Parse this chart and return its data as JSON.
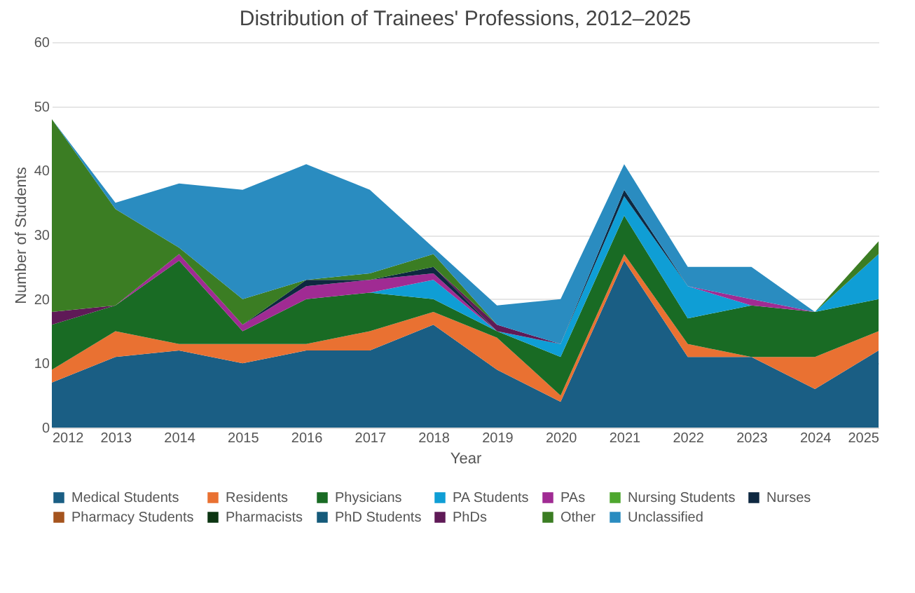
{
  "chart_data": {
    "type": "area",
    "stacked": true,
    "title": "Distribution of Trainees' Professions, 2012–2025",
    "xlabel": "Year",
    "ylabel": "Number of Students",
    "x": [
      2012,
      2013,
      2014,
      2015,
      2016,
      2017,
      2018,
      2019,
      2020,
      2021,
      2022,
      2023,
      2024,
      2025
    ],
    "xlim": [
      2012,
      2025
    ],
    "xticks": [
      2012,
      2013,
      2014,
      2015,
      2016,
      2017,
      2018,
      2019,
      2020,
      2021,
      2022,
      2023,
      2024,
      2025
    ],
    "ylim": [
      0,
      60
    ],
    "yticks": [
      0,
      10,
      20,
      30,
      40,
      50,
      60
    ],
    "grid": "y",
    "legend": "bottom",
    "series": [
      {
        "name": "Medical Students",
        "color": "#1a5e84",
        "values": [
          7,
          11,
          12,
          10,
          12,
          12,
          16,
          9,
          4,
          26,
          11,
          11,
          6,
          12
        ]
      },
      {
        "name": "Residents",
        "color": "#e97132",
        "values": [
          2,
          4,
          1,
          3,
          1,
          3,
          2,
          5,
          1,
          1,
          2,
          0,
          5,
          3
        ]
      },
      {
        "name": "Physicians",
        "color": "#196b24",
        "values": [
          7,
          4,
          13,
          2,
          7,
          6,
          2,
          1,
          6,
          6,
          4,
          8,
          7,
          5
        ]
      },
      {
        "name": "PA Students",
        "color": "#0f9ed5",
        "values": [
          null,
          null,
          null,
          null,
          null,
          0,
          3,
          0,
          2,
          3,
          5,
          0,
          0,
          7
        ]
      },
      {
        "name": "PAs",
        "color": "#a02b93",
        "values": [
          null,
          0,
          1,
          1,
          2,
          2,
          1,
          0,
          null,
          null,
          0,
          1,
          0,
          null
        ]
      },
      {
        "name": "Nursing Students",
        "color": "#4ea72e",
        "values": [
          null,
          null,
          null,
          null,
          null,
          null,
          null,
          null,
          null,
          null,
          null,
          null,
          null,
          null
        ]
      },
      {
        "name": "Nurses",
        "color": "#0e2841",
        "values": [
          null,
          null,
          null,
          0,
          1,
          0,
          1,
          0,
          0,
          1,
          0,
          null,
          null,
          null
        ]
      },
      {
        "name": "Pharmacy Students",
        "color": "#a5541e",
        "values": [
          null,
          null,
          null,
          null,
          null,
          null,
          null,
          null,
          null,
          null,
          null,
          null,
          null,
          null
        ]
      },
      {
        "name": "Pharmacists",
        "color": "#0c3512",
        "values": [
          null,
          null,
          null,
          null,
          null,
          null,
          null,
          null,
          null,
          null,
          null,
          null,
          null,
          null
        ]
      },
      {
        "name": "PhD Students",
        "color": "#155a7a",
        "values": [
          null,
          null,
          null,
          null,
          null,
          null,
          null,
          null,
          null,
          null,
          null,
          null,
          null,
          null
        ]
      },
      {
        "name": "PhDs",
        "color": "#5f1a57",
        "values": [
          2,
          0,
          null,
          null,
          null,
          null,
          0,
          1,
          0,
          null,
          null,
          null,
          null,
          null
        ]
      },
      {
        "name": "Other",
        "color": "#3b7d23",
        "values": [
          30,
          15,
          1,
          4,
          0,
          1,
          2,
          0,
          null,
          null,
          null,
          null,
          0,
          2
        ]
      },
      {
        "name": "Unclassified",
        "color": "#2a8cc0",
        "values": [
          0,
          1,
          10,
          17,
          18,
          13,
          1,
          3,
          7,
          4,
          3,
          5,
          0,
          null
        ]
      }
    ]
  }
}
